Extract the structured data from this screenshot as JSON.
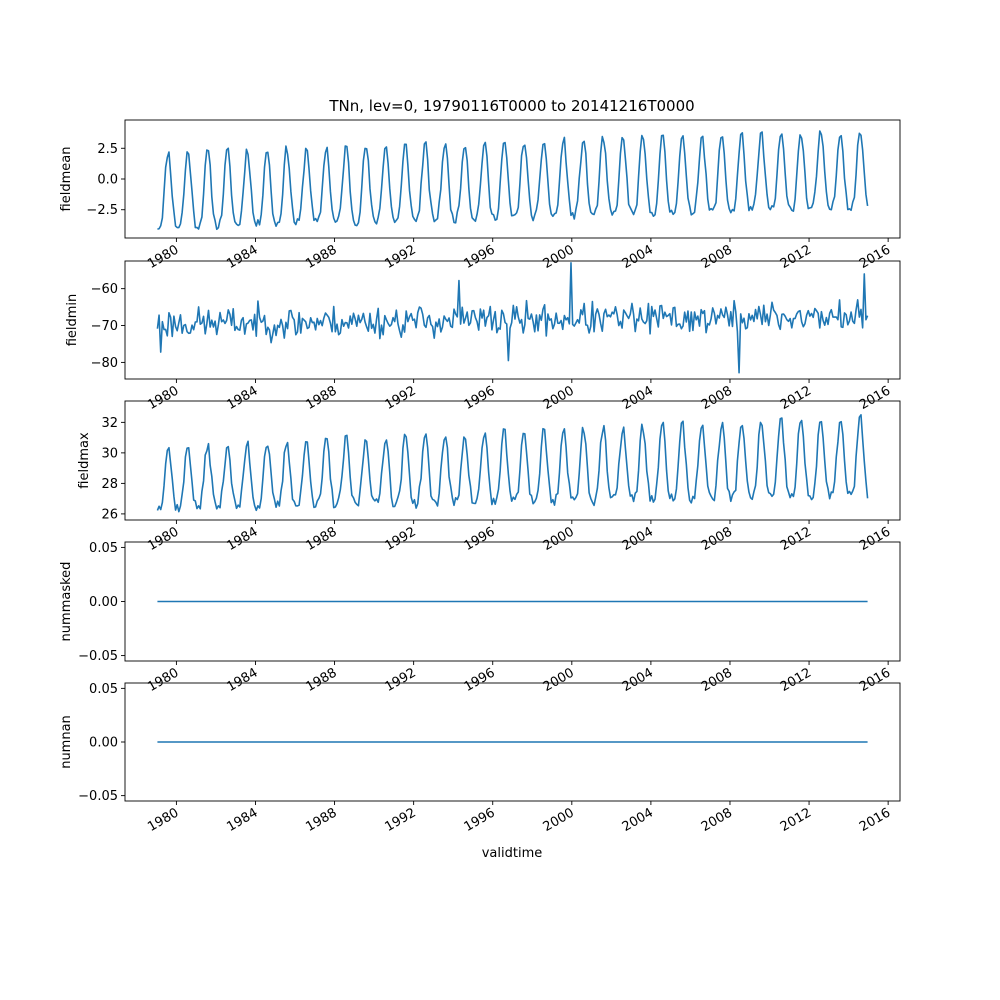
{
  "figure_title": "TNn, lev=0, 19790116T0000 to 20141216T0000",
  "xlabel": "validtime",
  "line_color": "#1f77b4",
  "chart_data": [
    {
      "type": "line",
      "ylabel": "fieldmean",
      "x_range": [
        1979.04,
        2014.96
      ],
      "xlim": [
        1977.4,
        2016.6
      ],
      "ylim": [
        -4.8,
        4.8
      ],
      "yticks": [
        -2.5,
        0.0,
        2.5
      ],
      "ytick_labels": [
        "−2.5",
        "0.0",
        "2.5"
      ],
      "xticks": [
        1980,
        1984,
        1988,
        1992,
        1996,
        2000,
        2004,
        2008,
        2012,
        2016
      ],
      "xtick_labels": [
        "1980",
        "1984",
        "1988",
        "1992",
        "1996",
        "2000",
        "2004",
        "2008",
        "2012",
        "2016"
      ],
      "pattern": "seasonal",
      "trough_start": -3.9,
      "trough_end": -2.3,
      "peak_start": 2.2,
      "peak_end": 4.0,
      "noise": 0.35,
      "seed": 11
    },
    {
      "type": "line",
      "ylabel": "fieldmin",
      "x_range": [
        1979.04,
        2014.96
      ],
      "xlim": [
        1977.4,
        2016.6
      ],
      "ylim": [
        -84.5,
        -52.5
      ],
      "yticks": [
        -80,
        -70,
        -60
      ],
      "ytick_labels": [
        "−80",
        "−70",
        "−60"
      ],
      "xticks": [
        1980,
        1984,
        1988,
        1992,
        1996,
        2000,
        2004,
        2008,
        2012,
        2016
      ],
      "xtick_labels": [
        "1980",
        "1984",
        "1988",
        "1992",
        "1996",
        "2000",
        "2004",
        "2008",
        "2012",
        "2016"
      ],
      "pattern": "noise",
      "mean_start": -69.5,
      "mean_end": -67.5,
      "noise": 4.2,
      "seed": 23,
      "extremes": [
        {
          "x": 1979.2,
          "y": -77.2
        },
        {
          "x": 1986.0,
          "y": -72.5
        },
        {
          "x": 1994.3,
          "y": -57.8
        },
        {
          "x": 1996.8,
          "y": -79.5
        },
        {
          "x": 1999.96,
          "y": -53.0
        },
        {
          "x": 2008.5,
          "y": -82.8
        },
        {
          "x": 2014.8,
          "y": -56.0
        }
      ]
    },
    {
      "type": "line",
      "ylabel": "fieldmax",
      "x_range": [
        1979.04,
        2014.96
      ],
      "xlim": [
        1977.4,
        2016.6
      ],
      "ylim": [
        25.6,
        33.4
      ],
      "yticks": [
        26,
        28,
        30,
        32
      ],
      "ytick_labels": [
        "26",
        "28",
        "30",
        "32"
      ],
      "xticks": [
        1980,
        1984,
        1988,
        1992,
        1996,
        2000,
        2004,
        2008,
        2012,
        2016
      ],
      "xtick_labels": [
        "1980",
        "1984",
        "1988",
        "1992",
        "1996",
        "2000",
        "2004",
        "2008",
        "2012",
        "2016"
      ],
      "pattern": "seasonal",
      "trough_start": 26.4,
      "trough_end": 27.2,
      "peak_start": 30.4,
      "peak_end": 32.4,
      "noise": 0.35,
      "seed": 37
    },
    {
      "type": "line",
      "ylabel": "nummasked",
      "x": [
        1979.04,
        2014.96
      ],
      "y": [
        0.0,
        0.0
      ],
      "xlim": [
        1977.4,
        2016.6
      ],
      "ylim": [
        -0.055,
        0.055
      ],
      "yticks": [
        -0.05,
        0.0,
        0.05
      ],
      "ytick_labels": [
        "−0.05",
        "0.00",
        "0.05"
      ],
      "xticks": [
        1980,
        1984,
        1988,
        1992,
        1996,
        2000,
        2004,
        2008,
        2012,
        2016
      ],
      "xtick_labels": [
        "1980",
        "1984",
        "1988",
        "1992",
        "1996",
        "2000",
        "2004",
        "2008",
        "2012",
        "2016"
      ]
    },
    {
      "type": "line",
      "ylabel": "numnan",
      "x": [
        1979.04,
        2014.96
      ],
      "y": [
        0.0,
        0.0
      ],
      "xlim": [
        1977.4,
        2016.6
      ],
      "ylim": [
        -0.055,
        0.055
      ],
      "yticks": [
        -0.05,
        0.0,
        0.05
      ],
      "ytick_labels": [
        "−0.05",
        "0.00",
        "0.05"
      ],
      "xticks": [
        1980,
        1984,
        1988,
        1992,
        1996,
        2000,
        2004,
        2008,
        2012,
        2016
      ],
      "xtick_labels": [
        "1980",
        "1984",
        "1988",
        "1992",
        "1996",
        "2000",
        "2004",
        "2008",
        "2012",
        "2016"
      ]
    }
  ]
}
